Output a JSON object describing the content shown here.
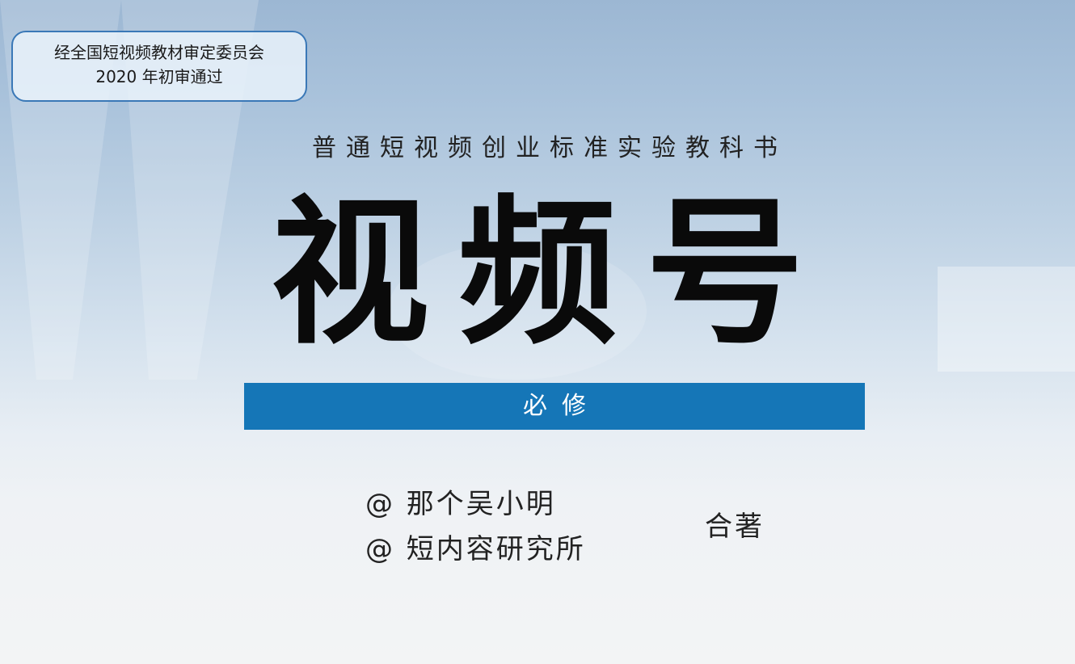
{
  "approval": {
    "line1": "经全国短视频教材审定委员会",
    "line2": "2020 年初审通过"
  },
  "series_title": "普通短视频创业标准实验教科书",
  "main_title": "视频号",
  "band_label": "必修",
  "authors": [
    "@ 那个吴小明",
    "@ 短内容研究所"
  ],
  "coauthor_note": "合著",
  "colors": {
    "band": "#1576b7",
    "approval_border": "#3a78b7",
    "title_text": "#0a0a0a"
  }
}
